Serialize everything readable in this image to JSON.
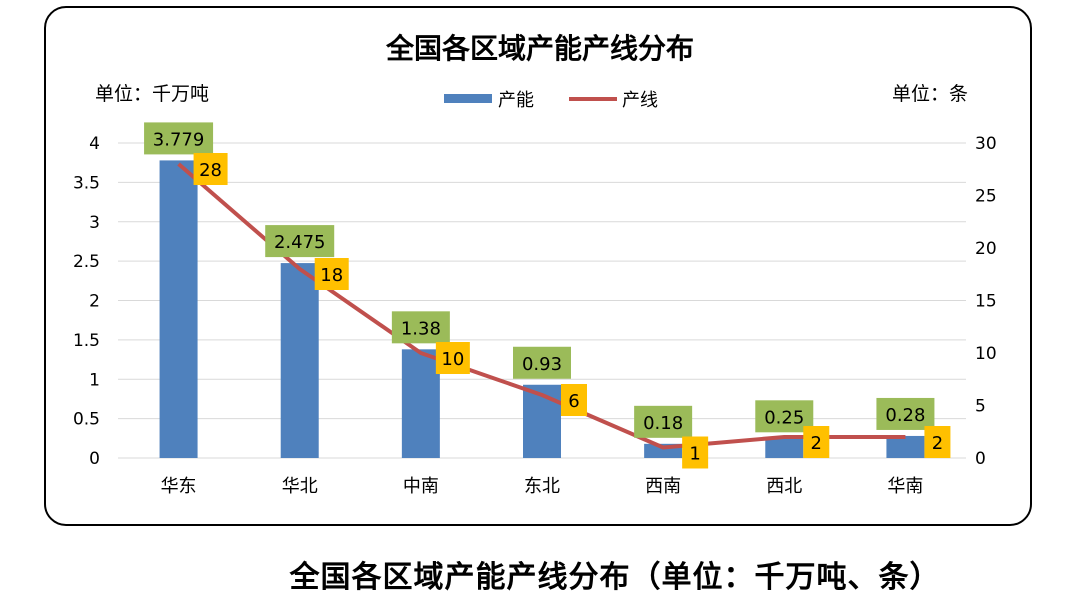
{
  "caption": "全国各区域产能产线分布（单位：千万吨、条）",
  "chart_data": {
    "type": "bar",
    "title": "全国各区域产能产线分布",
    "left_unit": "单位：千万吨",
    "right_unit": "单位：条",
    "categories": [
      "华东",
      "华北",
      "中南",
      "东北",
      "西南",
      "西北",
      "华南"
    ],
    "series": [
      {
        "name": "产能",
        "type": "bar",
        "axis": "left",
        "color": "#4f81bd",
        "values": [
          3.779,
          2.475,
          1.38,
          0.93,
          0.18,
          0.25,
          0.28
        ],
        "labels": [
          "3.779",
          "2.475",
          "1.38",
          "0.93",
          "0.18",
          "0.25",
          "0.28"
        ],
        "label_bg": "#9bbb59"
      },
      {
        "name": "产线",
        "type": "line",
        "axis": "right",
        "color": "#c0504d",
        "values": [
          28,
          18,
          10,
          6,
          1,
          2,
          2
        ],
        "labels": [
          "28",
          "18",
          "10",
          "6",
          "1",
          "2",
          "2"
        ],
        "label_bg": "#ffc000"
      }
    ],
    "y_left": {
      "min": 0,
      "max": 4,
      "ticks": [
        "0",
        "0.5",
        "1",
        "1.5",
        "2",
        "2.5",
        "3",
        "3.5",
        "4"
      ]
    },
    "y_right": {
      "min": 0,
      "max": 30,
      "ticks": [
        "0",
        "5",
        "10",
        "15",
        "20",
        "25",
        "30"
      ]
    },
    "grid": true,
    "legend_position": "top-center"
  }
}
